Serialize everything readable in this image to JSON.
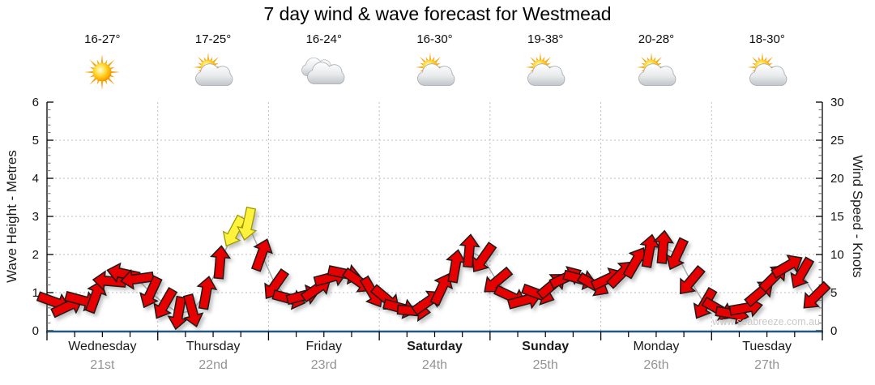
{
  "title": "7 day wind & wave forecast for Westmead",
  "watermark": "www.seabreeze.com.au",
  "days": [
    {
      "name": "Wednesday",
      "date": "21st",
      "temp": "16-27°",
      "icon": "sunny",
      "bold": false
    },
    {
      "name": "Thursday",
      "date": "22nd",
      "temp": "17-25°",
      "icon": "sun-cloud",
      "bold": false
    },
    {
      "name": "Friday",
      "date": "23rd",
      "temp": "16-24°",
      "icon": "cloudy",
      "bold": false
    },
    {
      "name": "Saturday",
      "date": "24th",
      "temp": "16-30°",
      "icon": "sun-cloud",
      "bold": true
    },
    {
      "name": "Sunday",
      "date": "25th",
      "temp": "19-38°",
      "icon": "sun-cloud",
      "bold": true
    },
    {
      "name": "Monday",
      "date": "26th",
      "temp": "20-28°",
      "icon": "sun-cloud",
      "bold": false
    },
    {
      "name": "Tuesday",
      "date": "27th",
      "temp": "18-30°",
      "icon": "sun-cloud",
      "bold": false
    }
  ],
  "chart_data": {
    "type": "line",
    "title": "7 day wind & wave forecast for Westmead",
    "x_axis": {
      "categories": [
        "Wednesday 21st",
        "Thursday 22nd",
        "Friday 23rd",
        "Saturday 24th",
        "Sunday 25th",
        "Monday 26th",
        "Tuesday 27th"
      ],
      "minor_tick_hours": 6
    },
    "y_left": {
      "label": "Wave Height - Metres",
      "min": 0,
      "max": 6,
      "ticks": [
        0,
        1,
        2,
        3,
        4,
        5,
        6
      ],
      "minor_step": 0.2
    },
    "y_right": {
      "label": "Wind Speed - Knots",
      "min": 0,
      "max": 30,
      "ticks": [
        0,
        5,
        10,
        15,
        20,
        25,
        30
      ],
      "minor_step": 1
    },
    "grid": {
      "wave_lines": [
        1,
        2,
        3,
        4,
        5
      ],
      "vertical": "day-boundaries",
      "style": "dotted",
      "color": "#bebebe"
    },
    "series": [
      {
        "name": "Wind Speed",
        "unit": "knots",
        "interval_hours": 3,
        "marker": "direction-arrow",
        "arrow_color_low": "#E60000",
        "arrow_color_high": "#FFF23D",
        "high_threshold_kt": 12,
        "connector_color": "#ABABAB",
        "points_kt_dir": [
          [
            3.8,
            20
          ],
          [
            3.2,
            -25
          ],
          [
            4.0,
            15
          ],
          [
            4.5,
            -70
          ],
          [
            6.5,
            185
          ],
          [
            7.5,
            192
          ],
          [
            6.8,
            172
          ],
          [
            5.0,
            115
          ],
          [
            3.5,
            120
          ],
          [
            2.3,
            100
          ],
          [
            2.6,
            75
          ],
          [
            5.0,
            -80
          ],
          [
            9.0,
            -85
          ],
          [
            13.0,
            118
          ],
          [
            14.0,
            102
          ],
          [
            10.0,
            -70
          ],
          [
            6.0,
            125
          ],
          [
            4.2,
            15
          ],
          [
            4.6,
            -15
          ],
          [
            5.5,
            -35
          ],
          [
            7.0,
            -15
          ],
          [
            7.5,
            12
          ],
          [
            6.5,
            35
          ],
          [
            5.0,
            60
          ],
          [
            4.2,
            40
          ],
          [
            3.0,
            15
          ],
          [
            2.6,
            5
          ],
          [
            3.8,
            -35
          ],
          [
            5.5,
            -65
          ],
          [
            8.5,
            -80
          ],
          [
            10.5,
            -85
          ],
          [
            9.5,
            125
          ],
          [
            6.5,
            140
          ],
          [
            4.5,
            25
          ],
          [
            4.0,
            -15
          ],
          [
            4.8,
            20
          ],
          [
            6.0,
            -40
          ],
          [
            7.0,
            -25
          ],
          [
            6.8,
            15
          ],
          [
            6.0,
            30
          ],
          [
            6.8,
            -25
          ],
          [
            7.5,
            -45
          ],
          [
            9.0,
            -60
          ],
          [
            10.5,
            -80
          ],
          [
            11.0,
            -85
          ],
          [
            10.0,
            115
          ],
          [
            6.5,
            130
          ],
          [
            3.5,
            120
          ],
          [
            2.8,
            30
          ],
          [
            2.2,
            10
          ],
          [
            3.0,
            -10
          ],
          [
            5.0,
            -40
          ],
          [
            7.0,
            -45
          ],
          [
            8.5,
            -30
          ],
          [
            7.5,
            120
          ],
          [
            4.5,
            135
          ]
        ]
      },
      {
        "name": "Wave Height",
        "unit": "metres",
        "flat_value": 0,
        "color": "#24587F"
      }
    ],
    "watermark": "www.seabreeze.com.au"
  }
}
